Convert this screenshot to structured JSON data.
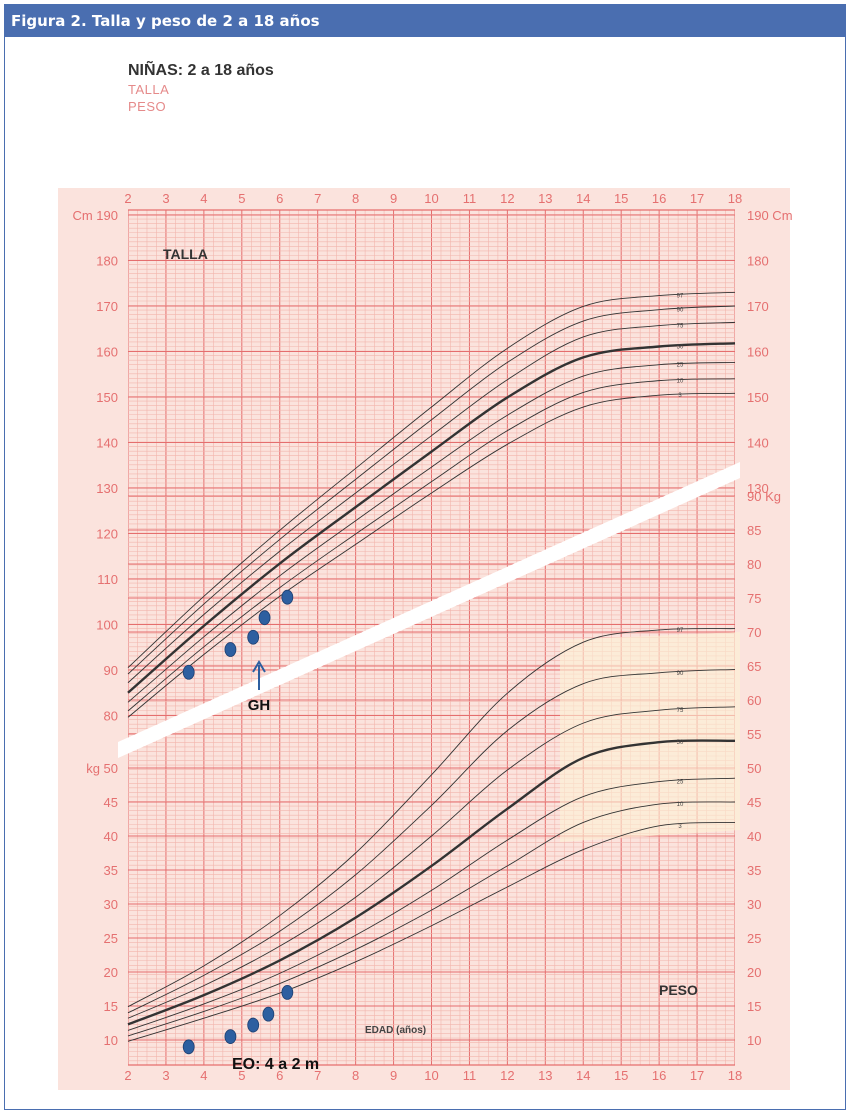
{
  "figure": {
    "caption": "Figura 2.  Talla y peso de 2 a 18 años"
  },
  "colors": {
    "header_bg": "#4a6eb0",
    "paper_bg": "#fbe3dd",
    "grid_fine": "#f2b5ad",
    "grid_major": "#e56e6e",
    "curve": "#333333",
    "marker": "#2d5fa0",
    "band": "#fdf2d6"
  },
  "chart_data": {
    "type": "line",
    "title": "NIÑAS: 2 a 18 años",
    "legend": [
      "TALLA",
      "PESO"
    ],
    "xlabel": "EDAD (años)",
    "x_ticks": [
      "2",
      "3",
      "4",
      "5",
      "6",
      "7",
      "8",
      "9",
      "10",
      "11",
      "12",
      "13",
      "14",
      "15",
      "16",
      "17",
      "18"
    ],
    "xlim": [
      2,
      18
    ],
    "height_panel": {
      "label": "TALLA",
      "unit_left": "Cm",
      "unit_right": "Cm",
      "ylim": [
        80,
        190
      ],
      "y_ticks": [
        80,
        90,
        100,
        110,
        120,
        130,
        140,
        150,
        160,
        170,
        180,
        190
      ],
      "x": [
        2,
        4,
        6,
        8,
        10,
        12,
        14,
        16,
        18
      ],
      "series": [
        {
          "name": "97",
          "values": [
            90.5,
            106.2,
            120.7,
            134.3,
            147.8,
            160.7,
            169.9,
            172.3,
            173.0
          ]
        },
        {
          "name": "90",
          "values": [
            89.1,
            104.5,
            118.7,
            131.9,
            145.0,
            157.6,
            166.7,
            169.2,
            170.0
          ]
        },
        {
          "name": "75",
          "values": [
            87.2,
            102.2,
            116.1,
            128.9,
            141.5,
            153.8,
            163.2,
            165.7,
            166.4
          ]
        },
        {
          "name": "50",
          "values": [
            85.0,
            99.7,
            113.4,
            125.8,
            138.0,
            149.9,
            158.7,
            161.1,
            161.8
          ]
        },
        {
          "name": "25",
          "values": [
            82.9,
            97.3,
            110.7,
            122.8,
            134.6,
            146.0,
            154.6,
            157.1,
            157.6
          ]
        },
        {
          "name": "10",
          "values": [
            81.0,
            95.1,
            108.1,
            119.9,
            131.4,
            142.6,
            151.0,
            153.6,
            154.0
          ]
        },
        {
          "name": "3",
          "values": [
            79.6,
            93.4,
            106.2,
            117.6,
            128.9,
            139.6,
            147.8,
            150.4,
            150.8
          ]
        }
      ],
      "points": [
        {
          "x": 3.6,
          "y": 89.5
        },
        {
          "x": 4.7,
          "y": 94.5
        },
        {
          "x": 5.3,
          "y": 97.2
        },
        {
          "x": 5.6,
          "y": 101.5
        },
        {
          "x": 6.2,
          "y": 106.0
        }
      ],
      "annotation": {
        "text": "GH",
        "x": 5.4
      }
    },
    "weight_panel": {
      "label": "PESO",
      "unit_left": "kg",
      "unit_right": "Kg",
      "ylim": [
        10,
        90
      ],
      "y_ticks_left": [
        10,
        15,
        20,
        25,
        30,
        35,
        40,
        45,
        50
      ],
      "y_ticks_right": [
        10,
        15,
        20,
        25,
        30,
        35,
        40,
        45,
        50,
        55,
        60,
        65,
        70,
        75,
        80,
        85,
        90
      ],
      "x": [
        2,
        4,
        6,
        8,
        10,
        12,
        14,
        16,
        18
      ],
      "series": [
        {
          "name": "97",
          "values": [
            14.9,
            20.9,
            28.3,
            37.5,
            49.0,
            61.0,
            68.5,
            70.3,
            70.5
          ]
        },
        {
          "name": "90",
          "values": [
            14.0,
            19.5,
            26.0,
            34.3,
            44.5,
            55.5,
            62.4,
            64.0,
            64.5
          ]
        },
        {
          "name": "75",
          "values": [
            13.2,
            18.0,
            23.8,
            31.0,
            40.0,
            49.7,
            56.6,
            58.5,
            59.0
          ]
        },
        {
          "name": "50",
          "values": [
            12.3,
            16.6,
            21.7,
            28.0,
            35.6,
            44.0,
            51.5,
            53.8,
            54.0
          ]
        },
        {
          "name": "25",
          "values": [
            11.4,
            15.3,
            19.8,
            25.4,
            32.0,
            39.4,
            45.8,
            48.0,
            48.5
          ]
        },
        {
          "name": "10",
          "values": [
            10.6,
            14.2,
            18.3,
            23.3,
            29.1,
            35.6,
            42.0,
            44.7,
            45.0
          ]
        },
        {
          "name": "3",
          "values": [
            9.8,
            13.2,
            16.9,
            21.5,
            26.8,
            32.5,
            38.0,
            41.5,
            42.0
          ]
        }
      ],
      "points": [
        {
          "x": 3.6,
          "y": 9.0
        },
        {
          "x": 4.7,
          "y": 10.5
        },
        {
          "x": 5.3,
          "y": 12.2
        },
        {
          "x": 5.7,
          "y": 13.8
        },
        {
          "x": 6.2,
          "y": 17.0
        }
      ],
      "annotation": {
        "text": "EO: 4 a 2 m"
      }
    }
  }
}
